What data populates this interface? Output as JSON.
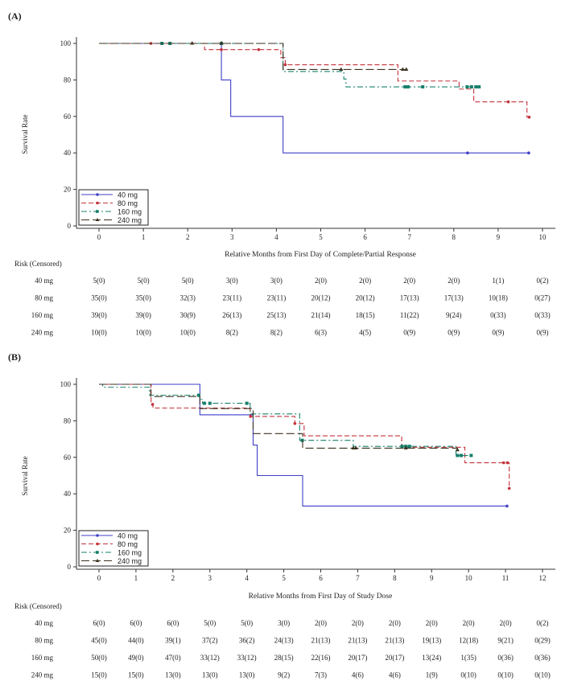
{
  "colors": {
    "40 mg": "#3f3fc8",
    "80 mg": "#c4323c",
    "160 mg": "#17806c",
    "240 mg": "#3b3220"
  },
  "chart_data": [
    {
      "panel_label": "(A)",
      "type": "line",
      "step": true,
      "xlabel": "Relative Months from First Day of Complete/Partial Response",
      "ylabel": "Survival Rate",
      "xlim": [
        0,
        10
      ],
      "ylim": [
        0,
        100
      ],
      "xticks": [
        "0",
        "1",
        "2",
        "3",
        "4",
        "5",
        "6",
        "7",
        "8",
        "9",
        "10"
      ],
      "yticks": [
        "0",
        "20",
        "40",
        "60",
        "80",
        "100"
      ],
      "grid": false,
      "legend": "bottom-left",
      "series": [
        {
          "name": "40 mg",
          "marker": "circle",
          "dash": "solid",
          "points": [
            [
              0,
              100
            ],
            [
              2.76,
              80
            ],
            [
              2.97,
              60
            ],
            [
              4.15,
              40
            ],
            [
              9.69,
              40
            ]
          ],
          "censored": [
            8.31,
            9.69
          ]
        },
        {
          "name": "80 mg",
          "marker": "circle",
          "dash": "dashed",
          "points": [
            [
              0,
              100
            ],
            [
              2.38,
              96.6
            ],
            [
              4.1,
              92.2
            ],
            [
              4.2,
              88.3
            ],
            [
              6.74,
              79.4
            ],
            [
              8.12,
              75
            ],
            [
              8.45,
              68
            ],
            [
              9.65,
              59.6
            ],
            [
              9.7,
              59.6
            ]
          ],
          "censored": [
            1.17,
            2.76,
            3.6,
            4.2,
            9.23,
            9.7
          ]
        },
        {
          "name": "160 mg",
          "marker": "square",
          "dash": "dash-dot",
          "points": [
            [
              0,
              100
            ],
            [
              4.15,
              84.6
            ],
            [
              5.52,
              80.5
            ],
            [
              5.57,
              76.2
            ],
            [
              8.57,
              76.2
            ]
          ],
          "censored": [
            1.42,
            1.6,
            2.76,
            6.9,
            6.97,
            7.3,
            8.3,
            8.4,
            8.5,
            8.57
          ]
        },
        {
          "name": "240 mg",
          "marker": "triangle",
          "dash": "long-dash",
          "points": [
            [
              0,
              100
            ],
            [
              4.15,
              85.7
            ],
            [
              6.93,
              85.7
            ]
          ],
          "censored": [
            2.1,
            2.76,
            5.46,
            6.85,
            6.93
          ]
        }
      ],
      "risk_table": {
        "title": "Risk (Censored)",
        "rows": [
          {
            "label": "40 mg",
            "values": [
              "5(0)",
              "5(0)",
              "5(0)",
              "3(0)",
              "3(0)",
              "2(0)",
              "2(0)",
              "2(0)",
              "2(0)",
              "1(1)",
              "0(2)"
            ]
          },
          {
            "label": "80 mg",
            "values": [
              "35(0)",
              "35(0)",
              "32(3)",
              "23(11)",
              "23(11)",
              "20(12)",
              "20(12)",
              "17(13)",
              "17(13)",
              "10(18)",
              "0(27)"
            ]
          },
          {
            "label": "160 mg",
            "values": [
              "39(0)",
              "39(0)",
              "30(9)",
              "26(13)",
              "25(13)",
              "21(14)",
              "18(15)",
              "11(22)",
              "9(24)",
              "0(33)",
              "0(33)"
            ]
          },
          {
            "label": "240 mg",
            "values": [
              "10(0)",
              "10(0)",
              "10(0)",
              "8(2)",
              "8(2)",
              "6(3)",
              "4(5)",
              "0(9)",
              "0(9)",
              "0(9)",
              "0(9)"
            ]
          }
        ]
      }
    },
    {
      "panel_label": "(B)",
      "type": "line",
      "step": true,
      "xlabel": "Relative Months from First Day of Study Dose",
      "ylabel": "Survival Rate",
      "xlim": [
        0,
        12
      ],
      "ylim": [
        0,
        100
      ],
      "xticks": [
        "0",
        "1",
        "2",
        "3",
        "4",
        "5",
        "6",
        "7",
        "8",
        "9",
        "10",
        "11",
        "12"
      ],
      "yticks": [
        "0",
        "20",
        "40",
        "60",
        "80",
        "100"
      ],
      "grid": false,
      "legend": "bottom-left",
      "series": [
        {
          "name": "40 mg",
          "marker": "circle",
          "dash": "solid",
          "points": [
            [
              0,
              100
            ],
            [
              2.73,
              83.3
            ],
            [
              4.17,
              66.7
            ],
            [
              4.28,
              50
            ],
            [
              5.51,
              33.3
            ],
            [
              11.04,
              33.3
            ]
          ],
          "censored": [
            11.04
          ]
        },
        {
          "name": "80 mg",
          "marker": "circle",
          "dash": "dashed",
          "points": [
            [
              0,
              100
            ],
            [
              1.41,
              89
            ],
            [
              1.46,
              87
            ],
            [
              4.09,
              82.4
            ],
            [
              5.3,
              78.5
            ],
            [
              5.55,
              71.8
            ],
            [
              8.19,
              65.5
            ],
            [
              9.9,
              57
            ],
            [
              11.1,
              43
            ],
            [
              11.1,
              43
            ]
          ],
          "censored": [
            1.45,
            4.1,
            5.3,
            10.95,
            11.05,
            11.1
          ]
        },
        {
          "name": "160 mg",
          "marker": "square",
          "dash": "dash-dot",
          "points": [
            [
              0,
              100
            ],
            [
              0.1,
              98.4
            ],
            [
              1.37,
              94
            ],
            [
              2.73,
              91.8
            ],
            [
              2.8,
              89.6
            ],
            [
              4.09,
              83.8
            ],
            [
              5.43,
              69.3
            ],
            [
              6.88,
              66
            ],
            [
              9.66,
              61
            ],
            [
              10.07,
              61
            ]
          ],
          "censored": [
            2.7,
            2.85,
            3.0,
            4.0,
            5.5,
            8.2,
            8.3,
            8.4,
            9.7,
            9.8,
            10.07
          ]
        },
        {
          "name": "240 mg",
          "marker": "triangle",
          "dash": "long-dash",
          "points": [
            [
              0,
              100
            ],
            [
              1.4,
              93.3
            ],
            [
              2.73,
              86.7
            ],
            [
              4.17,
              73
            ],
            [
              5.51,
              65
            ],
            [
              9.7,
              64
            ]
          ],
          "censored": [
            6.88,
            6.95,
            8.3,
            9.7
          ]
        }
      ],
      "risk_table": {
        "title": "Risk (Censored)",
        "rows": [
          {
            "label": "40 mg",
            "values": [
              "6(0)",
              "6(0)",
              "6(0)",
              "5(0)",
              "5(0)",
              "3(0)",
              "2(0)",
              "2(0)",
              "2(0)",
              "2(0)",
              "2(0)",
              "2(0)",
              "0(2)"
            ]
          },
          {
            "label": "80 mg",
            "values": [
              "45(0)",
              "44(0)",
              "39(1)",
              "37(2)",
              "36(2)",
              "24(13)",
              "21(13)",
              "21(13)",
              "21(13)",
              "19(13)",
              "12(18)",
              "9(21)",
              "0(29)"
            ]
          },
          {
            "label": "160 mg",
            "values": [
              "50(0)",
              "49(0)",
              "47(0)",
              "33(12)",
              "33(12)",
              "28(15)",
              "22(16)",
              "20(17)",
              "20(17)",
              "13(24)",
              "1(35)",
              "0(36)",
              "0(36)"
            ]
          },
          {
            "label": "240 mg",
            "values": [
              "15(0)",
              "15(0)",
              "13(0)",
              "13(0)",
              "13(0)",
              "9(2)",
              "7(3)",
              "4(6)",
              "4(6)",
              "1(9)",
              "0(10)",
              "0(10)",
              "0(10)"
            ]
          }
        ]
      }
    }
  ]
}
